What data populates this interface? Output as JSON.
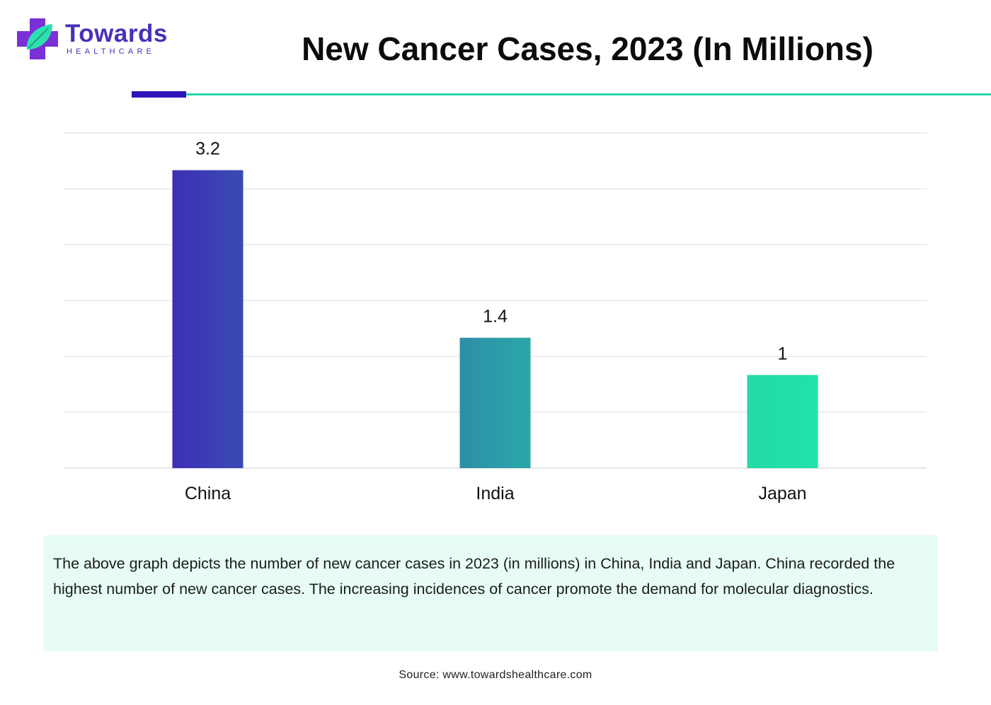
{
  "brand": {
    "name": "Towards",
    "subtitle": "HEALTHCARE",
    "colors": {
      "primary": "#4a2fb8",
      "accent": "#28d9a8"
    }
  },
  "chart_data": {
    "type": "bar",
    "title": "New Cancer Cases, 2023 (In Millions)",
    "categories": [
      "China",
      "India",
      "Japan"
    ],
    "values": [
      3.2,
      1.4,
      1
    ],
    "value_labels": [
      "3.2",
      "1.4",
      "1"
    ],
    "ylim": [
      0,
      3.6
    ],
    "grid": true,
    "bar_colors": [
      [
        "#3d2fb5",
        "#3a4bb3"
      ],
      [
        "#2e8ea8",
        "#29a8a8"
      ],
      [
        "#24d9a6",
        "#20e3ab"
      ]
    ]
  },
  "note": {
    "text": "The above graph depicts the number of new cancer cases in 2023 (in millions) in China, India and Japan. China recorded the highest number of new cancer cases. The increasing incidences of cancer promote the demand for molecular diagnostics."
  },
  "source": {
    "text": "Source: www.towardshealthcare.com"
  }
}
